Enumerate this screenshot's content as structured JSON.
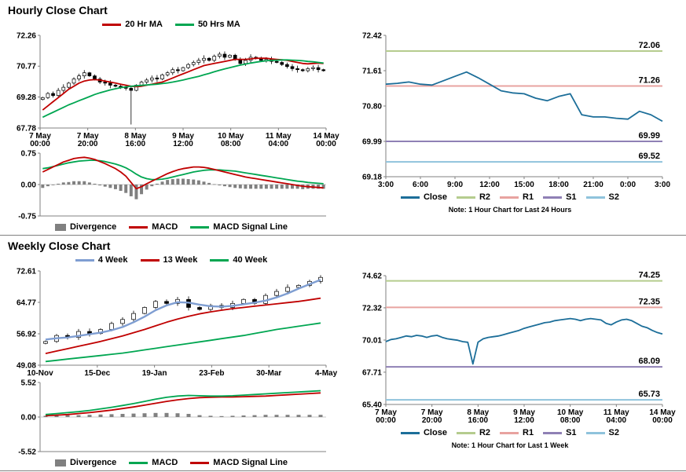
{
  "page": {
    "hourly_title": "Hourly Close Chart",
    "weekly_title": "Weekly Close Chart",
    "hourly_note": "Note: 1 Hour Chart for Last 24 Hours",
    "weekly_note": "Note: 1 Hour Chart for Last 1 Week"
  },
  "colors": {
    "ma_red": "#c00000",
    "ma_green": "#00a651",
    "weekly_blue": "#7f9ed2",
    "close_blue": "#1c6e99",
    "r2_green": "#b5cc8e",
    "r1_pink": "#e8a3a0",
    "s1_purple": "#8f80b5",
    "s2_lightblue": "#8fc3dc",
    "divergence_gray": "#808080",
    "axis_gray": "#808080",
    "candle_black": "#000000"
  },
  "legends": {
    "hourly_price": [
      {
        "label": "20 Hr MA",
        "color": "#c00000",
        "type": "line"
      },
      {
        "label": "50 Hrs MA",
        "color": "#00a651",
        "type": "line"
      }
    ],
    "hourly_macd": [
      {
        "label": "Divergence",
        "color": "#808080",
        "type": "box"
      },
      {
        "label": "MACD",
        "color": "#c00000",
        "type": "line"
      },
      {
        "label": "MACD Signal Line",
        "color": "#00a651",
        "type": "line"
      }
    ],
    "weekly_price": [
      {
        "label": "4 Week",
        "color": "#7f9ed2",
        "type": "line"
      },
      {
        "label": "13 Week",
        "color": "#c00000",
        "type": "line"
      },
      {
        "label": "40 Week",
        "color": "#00a651",
        "type": "line"
      }
    ],
    "weekly_macd": [
      {
        "label": "Divergence",
        "color": "#808080",
        "type": "box"
      },
      {
        "label": "MACD",
        "color": "#00a651",
        "type": "line"
      },
      {
        "label": "MACD Signal Line",
        "color": "#c00000",
        "type": "line"
      }
    ],
    "pivot": [
      {
        "label": "Close",
        "color": "#1c6e99",
        "type": "line"
      },
      {
        "label": "R2",
        "color": "#b5cc8e",
        "type": "line"
      },
      {
        "label": "R1",
        "color": "#e8a3a0",
        "type": "line"
      },
      {
        "label": "S1",
        "color": "#8f80b5",
        "type": "line"
      },
      {
        "label": "S2",
        "color": "#8fc3dc",
        "type": "line"
      }
    ]
  },
  "chart_data": [
    {
      "id": "hourly_price",
      "type": "candlestick",
      "title": "Hourly Close Chart",
      "ylim": [
        67.78,
        72.26
      ],
      "yticks": [
        "72.26",
        "70.77",
        "69.28",
        "67.78"
      ],
      "xticklabels": [
        "7 May|00:00",
        "7 May|20:00",
        "8 May|16:00",
        "9 May|12:00",
        "10 May|08:00",
        "11 May|04:00",
        "14 May|00:00"
      ],
      "closes": [
        69.25,
        69.45,
        69.35,
        69.6,
        69.75,
        69.95,
        70.15,
        70.3,
        70.45,
        70.3,
        70.15,
        70.0,
        69.95,
        69.85,
        69.8,
        69.75,
        69.7,
        69.6,
        69.85,
        70.0,
        70.1,
        70.2,
        70.15,
        70.35,
        70.45,
        70.6,
        70.55,
        70.7,
        70.85,
        70.95,
        71.05,
        71.15,
        71.05,
        71.25,
        71.35,
        71.2,
        71.3,
        71.1,
        70.9,
        71.05,
        71.2,
        71.15,
        71.05,
        71.1,
        71.0,
        70.95,
        70.85,
        70.75,
        70.65,
        70.6,
        70.55,
        70.65,
        70.7,
        70.6,
        70.55
      ],
      "low_spikes": [
        {
          "index": 17,
          "low": 67.95
        }
      ],
      "series": [
        {
          "name": "20 Hr MA",
          "color": "#c00000",
          "width": 1.8,
          "values": [
            68.65,
            68.85,
            69.05,
            69.25,
            69.45,
            69.65,
            69.8,
            69.95,
            70.05,
            70.1,
            70.12,
            70.1,
            70.05,
            70.0,
            69.95,
            69.9,
            69.85,
            69.8,
            69.78,
            69.8,
            69.85,
            69.9,
            69.95,
            70.0,
            70.1,
            70.2,
            70.3,
            70.4,
            70.5,
            70.6,
            70.7,
            70.8,
            70.85,
            70.9,
            70.95,
            71.0,
            71.05,
            71.1,
            71.1,
            71.1,
            71.12,
            71.15,
            71.15,
            71.15,
            71.12,
            71.1,
            71.08,
            71.05,
            71.0,
            70.95,
            70.9,
            70.88,
            70.9,
            70.92,
            70.9
          ]
        },
        {
          "name": "50 Hrs MA",
          "color": "#00a651",
          "width": 1.8,
          "values": [
            68.3,
            68.42,
            68.54,
            68.66,
            68.78,
            68.9,
            69.0,
            69.1,
            69.2,
            69.3,
            69.4,
            69.48,
            69.55,
            69.62,
            69.68,
            69.73,
            69.77,
            69.8,
            69.82,
            69.84,
            69.86,
            69.88,
            69.9,
            69.93,
            69.96,
            70.0,
            70.05,
            70.1,
            70.16,
            70.22,
            70.28,
            70.35,
            70.42,
            70.5,
            70.57,
            70.64,
            70.7,
            70.76,
            70.82,
            70.87,
            70.92,
            70.96,
            71.0,
            71.03,
            71.05,
            71.06,
            71.07,
            71.07,
            71.06,
            71.05,
            71.03,
            71.0,
            70.98,
            70.95,
            70.92
          ]
        }
      ]
    },
    {
      "id": "hourly_macd",
      "type": "macd",
      "ylim": [
        -0.75,
        0.75
      ],
      "yticks": [
        "0.75",
        "0.00",
        "-0.75"
      ],
      "macd": {
        "name": "MACD",
        "color": "#c00000",
        "values": [
          0.3,
          0.36,
          0.42,
          0.48,
          0.54,
          0.58,
          0.62,
          0.64,
          0.65,
          0.63,
          0.6,
          0.55,
          0.5,
          0.44,
          0.38,
          0.3,
          0.2,
          0.05,
          -0.1,
          -0.05,
          0.02,
          0.08,
          0.14,
          0.2,
          0.26,
          0.31,
          0.35,
          0.38,
          0.4,
          0.42,
          0.42,
          0.41,
          0.39,
          0.36,
          0.33,
          0.3,
          0.27,
          0.24,
          0.21,
          0.18,
          0.16,
          0.14,
          0.12,
          0.1,
          0.08,
          0.06,
          0.04,
          0.02,
          0.0,
          -0.02,
          -0.04,
          -0.05,
          -0.06,
          -0.07,
          -0.08
        ]
      },
      "signal": {
        "name": "MACD Signal Line",
        "color": "#00a651",
        "values": [
          0.38,
          0.4,
          0.43,
          0.46,
          0.49,
          0.52,
          0.54,
          0.56,
          0.57,
          0.58,
          0.58,
          0.57,
          0.55,
          0.52,
          0.49,
          0.45,
          0.4,
          0.33,
          0.25,
          0.18,
          0.14,
          0.12,
          0.12,
          0.13,
          0.15,
          0.18,
          0.21,
          0.24,
          0.27,
          0.3,
          0.32,
          0.34,
          0.35,
          0.35,
          0.35,
          0.34,
          0.33,
          0.32,
          0.3,
          0.28,
          0.26,
          0.24,
          0.22,
          0.2,
          0.18,
          0.16,
          0.14,
          0.12,
          0.1,
          0.08,
          0.07,
          0.05,
          0.04,
          0.03,
          0.02
        ]
      },
      "divergence_name": "Divergence",
      "divergence_color": "#808080"
    },
    {
      "id": "hourly_pivot",
      "type": "line",
      "ylim": [
        69.18,
        72.42
      ],
      "yticks": [
        "72.42",
        "71.61",
        "70.80",
        "69.99",
        "69.18"
      ],
      "xticklabels": [
        "3:00",
        "6:00",
        "9:00",
        "12:00",
        "15:00",
        "18:00",
        "21:00",
        "0:00",
        "3:00"
      ],
      "close": {
        "name": "Close",
        "color": "#1c6e99",
        "width": 1.8,
        "values": [
          71.3,
          71.32,
          71.35,
          71.3,
          71.28,
          71.38,
          71.48,
          71.58,
          71.45,
          71.3,
          71.15,
          71.1,
          71.08,
          70.98,
          70.92,
          71.02,
          71.08,
          70.6,
          70.55,
          70.55,
          70.52,
          70.5,
          70.68,
          70.6,
          70.45
        ]
      },
      "levels": [
        {
          "name": "R2",
          "value": 72.06,
          "color": "#b5cc8e"
        },
        {
          "name": "R1",
          "value": 71.26,
          "color": "#e8a3a0"
        },
        {
          "name": "S1",
          "value": 69.99,
          "color": "#8f80b5"
        },
        {
          "name": "S2",
          "value": 69.52,
          "color": "#8fc3dc"
        }
      ]
    },
    {
      "id": "weekly_price",
      "type": "candlestick",
      "title": "Weekly Close Chart",
      "ylim": [
        49.08,
        72.61
      ],
      "yticks": [
        "72.61",
        "64.77",
        "56.92",
        "49.08"
      ],
      "xticklabels": [
        "10-Nov",
        "15-Dec",
        "19-Jan",
        "23-Feb",
        "30-Mar",
        "4-May"
      ],
      "closes": [
        55.0,
        56.5,
        56.0,
        57.5,
        57.0,
        58.0,
        59.5,
        60.5,
        62.0,
        63.5,
        65.0,
        64.5,
        65.5,
        63.5,
        63.0,
        64.0,
        63.5,
        64.5,
        65.5,
        64.5,
        66.5,
        67.5,
        68.5,
        69.0,
        70.0,
        71.0
      ],
      "low_spikes": [],
      "series": [
        {
          "name": "4 Week",
          "color": "#7f9ed2",
          "width": 2.4,
          "values": [
            55.5,
            55.8,
            56.0,
            56.4,
            56.8,
            57.2,
            57.8,
            58.6,
            59.8,
            61.2,
            62.8,
            64.0,
            64.8,
            64.7,
            64.2,
            63.8,
            63.7,
            63.9,
            64.3,
            64.7,
            65.2,
            66.0,
            67.0,
            68.2,
            69.3,
            70.4
          ]
        },
        {
          "name": "13 Week",
          "color": "#c00000",
          "width": 1.8,
          "values": [
            52.0,
            52.6,
            53.2,
            53.8,
            54.4,
            55.0,
            55.7,
            56.4,
            57.2,
            58.0,
            58.9,
            59.8,
            60.6,
            61.3,
            61.9,
            62.4,
            62.8,
            63.2,
            63.5,
            63.8,
            64.1,
            64.4,
            64.7,
            65.0,
            65.4,
            65.8
          ]
        },
        {
          "name": "40 Week",
          "color": "#00a651",
          "width": 1.8,
          "values": [
            50.0,
            50.3,
            50.6,
            50.9,
            51.2,
            51.5,
            51.8,
            52.1,
            52.5,
            52.9,
            53.3,
            53.7,
            54.1,
            54.5,
            54.9,
            55.3,
            55.7,
            56.1,
            56.5,
            57.0,
            57.5,
            58.0,
            58.4,
            58.8,
            59.2,
            59.6
          ]
        }
      ]
    },
    {
      "id": "weekly_macd",
      "type": "macd",
      "ylim": [
        -5.52,
        5.52
      ],
      "yticks": [
        "5.52",
        "0.00",
        "-5.52"
      ],
      "macd": {
        "name": "MACD",
        "color": "#00a651",
        "values": [
          0.4,
          0.55,
          0.7,
          0.85,
          1.05,
          1.3,
          1.55,
          1.85,
          2.15,
          2.5,
          2.85,
          3.15,
          3.35,
          3.45,
          3.4,
          3.35,
          3.35,
          3.4,
          3.5,
          3.6,
          3.7,
          3.8,
          3.9,
          4.0,
          4.1,
          4.2
        ]
      },
      "signal": {
        "name": "MACD Signal Line",
        "color": "#c00000",
        "values": [
          0.2,
          0.3,
          0.4,
          0.55,
          0.7,
          0.9,
          1.1,
          1.35,
          1.6,
          1.9,
          2.2,
          2.5,
          2.75,
          2.95,
          3.1,
          3.15,
          3.2,
          3.2,
          3.25,
          3.3,
          3.35,
          3.45,
          3.55,
          3.65,
          3.75,
          3.85
        ]
      },
      "divergence_name": "Divergence",
      "divergence_color": "#808080"
    },
    {
      "id": "weekly_pivot",
      "type": "line",
      "ylim": [
        65.4,
        74.62
      ],
      "yticks": [
        "74.62",
        "72.32",
        "70.01",
        "67.71",
        "65.40"
      ],
      "xticklabels": [
        "7 May|00:00",
        "7 May|20:00",
        "8 May|16:00",
        "9 May|12:00",
        "10 May|08:00",
        "11 May|04:00",
        "14 May|00:00"
      ],
      "close": {
        "name": "Close",
        "color": "#1c6e99",
        "width": 1.8,
        "values": [
          69.9,
          70.05,
          70.1,
          70.2,
          70.3,
          70.25,
          70.35,
          70.3,
          70.2,
          70.3,
          70.35,
          70.2,
          70.1,
          70.05,
          70.0,
          69.9,
          69.85,
          68.3,
          69.85,
          70.1,
          70.2,
          70.25,
          70.3,
          70.4,
          70.5,
          70.6,
          70.7,
          70.85,
          70.95,
          71.05,
          71.15,
          71.25,
          71.3,
          71.4,
          71.45,
          71.5,
          71.55,
          71.5,
          71.4,
          71.5,
          71.55,
          71.5,
          71.45,
          71.2,
          71.1,
          71.3,
          71.45,
          71.5,
          71.4,
          71.2,
          71.0,
          70.9,
          70.7,
          70.55,
          70.45
        ]
      },
      "levels": [
        {
          "name": "R2",
          "value": 74.25,
          "color": "#b5cc8e"
        },
        {
          "name": "R1",
          "value": 72.35,
          "color": "#e8a3a0"
        },
        {
          "name": "S1",
          "value": 68.09,
          "color": "#8f80b5"
        },
        {
          "name": "S2",
          "value": 65.73,
          "color": "#8fc3dc"
        }
      ]
    }
  ]
}
